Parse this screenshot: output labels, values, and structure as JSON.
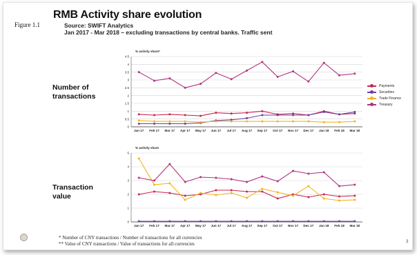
{
  "figure_label": "Figure 1.1",
  "title": "RMB Activity share evolution",
  "source": "Source: SWIFT Analytics",
  "subtitle": "Jan 2017 - Mar 2018 – excluding transactions by central banks. Traffic sent",
  "section1_label": [
    "Number of",
    "transactions"
  ],
  "section2_label": [
    "Transaction",
    "value"
  ],
  "footnote1": "* Number of CNY transactions / Number of transactions for all currencies",
  "footnote2": "** Value of CNY transactions / Value of transactions for all currencies",
  "page_number": "3",
  "colors": {
    "payments": "#c8244e",
    "securities": "#6a3fa0",
    "trade_finance": "#f6b21e",
    "treasury": "#b0327e"
  },
  "chart_data": [
    {
      "type": "line",
      "title": "",
      "ylabel": "% activity share*",
      "categories": [
        "Jan 17",
        "Feb 17",
        "Mar 17",
        "Apr 17",
        "May 17",
        "Jun 17",
        "Jul 17",
        "Aug 17",
        "Sep 17",
        "Oct 17",
        "Nov 17",
        "Dec 17",
        "Jan 18",
        "Feb 18",
        "Mar 18"
      ],
      "yticks": [
        "0",
        "0.5",
        "1",
        "1.5",
        "2",
        "2.5",
        "3",
        "3.5",
        "4",
        "4.5"
      ],
      "ylim": [
        0,
        4.5
      ],
      "grid": true,
      "legend": "right",
      "series": [
        {
          "name": "Payments",
          "values": [
            0.8,
            0.75,
            0.8,
            0.75,
            0.7,
            0.9,
            0.85,
            0.9,
            1.0,
            0.8,
            0.85,
            0.75,
            1.0,
            0.8,
            0.85
          ]
        },
        {
          "name": "Securities",
          "values": [
            0.2,
            0.2,
            0.2,
            0.2,
            0.25,
            0.4,
            0.45,
            0.55,
            0.75,
            0.75,
            0.75,
            0.75,
            0.95,
            0.8,
            0.95
          ]
        },
        {
          "name": "Trade Finance",
          "values": [
            0.4,
            0.35,
            0.35,
            0.35,
            0.3,
            0.35,
            0.35,
            0.35,
            0.35,
            0.35,
            0.35,
            0.35,
            0.3,
            0.3,
            0.35
          ]
        },
        {
          "name": "Treasury",
          "values": [
            3.5,
            2.95,
            3.1,
            2.5,
            2.75,
            3.45,
            3.05,
            3.6,
            4.15,
            3.2,
            3.55,
            2.9,
            4.1,
            3.3,
            3.4
          ]
        }
      ]
    },
    {
      "type": "line",
      "title": "",
      "ylabel": "% activity share",
      "categories": [
        "Jan 17",
        "Feb 17",
        "Mar 17",
        "Apr 17",
        "May 17",
        "Jun 17",
        "Jul 17",
        "Aug 17",
        "Sep 17",
        "Oct 17",
        "Nov 17",
        "Dec 17",
        "Jan 18",
        "Feb 18",
        "Mar 18"
      ],
      "yticks": [
        "0",
        "1",
        "2",
        "3",
        "4",
        "5"
      ],
      "ylim": [
        0,
        5
      ],
      "grid": true,
      "legend": "none",
      "series": [
        {
          "name": "Payments",
          "values": [
            2.0,
            2.2,
            2.1,
            1.9,
            2.0,
            2.3,
            2.3,
            2.2,
            2.2,
            1.7,
            2.0,
            1.8,
            2.0,
            1.85,
            1.9
          ]
        },
        {
          "name": "Securities",
          "values": [
            0.05,
            0.05,
            0.05,
            0.05,
            0.05,
            0.05,
            0.05,
            0.05,
            0.05,
            0.05,
            0.05,
            0.05,
            0.05,
            0.05,
            0.05
          ]
        },
        {
          "name": "Trade Finance",
          "values": [
            4.6,
            2.7,
            2.8,
            1.6,
            2.1,
            1.95,
            2.1,
            1.75,
            2.4,
            2.15,
            1.9,
            2.6,
            1.7,
            1.55,
            1.6
          ]
        },
        {
          "name": "Treasury",
          "values": [
            3.2,
            3.0,
            4.2,
            2.9,
            3.25,
            3.2,
            3.1,
            2.9,
            3.3,
            2.95,
            3.7,
            3.5,
            3.6,
            2.6,
            2.7
          ]
        }
      ]
    }
  ]
}
